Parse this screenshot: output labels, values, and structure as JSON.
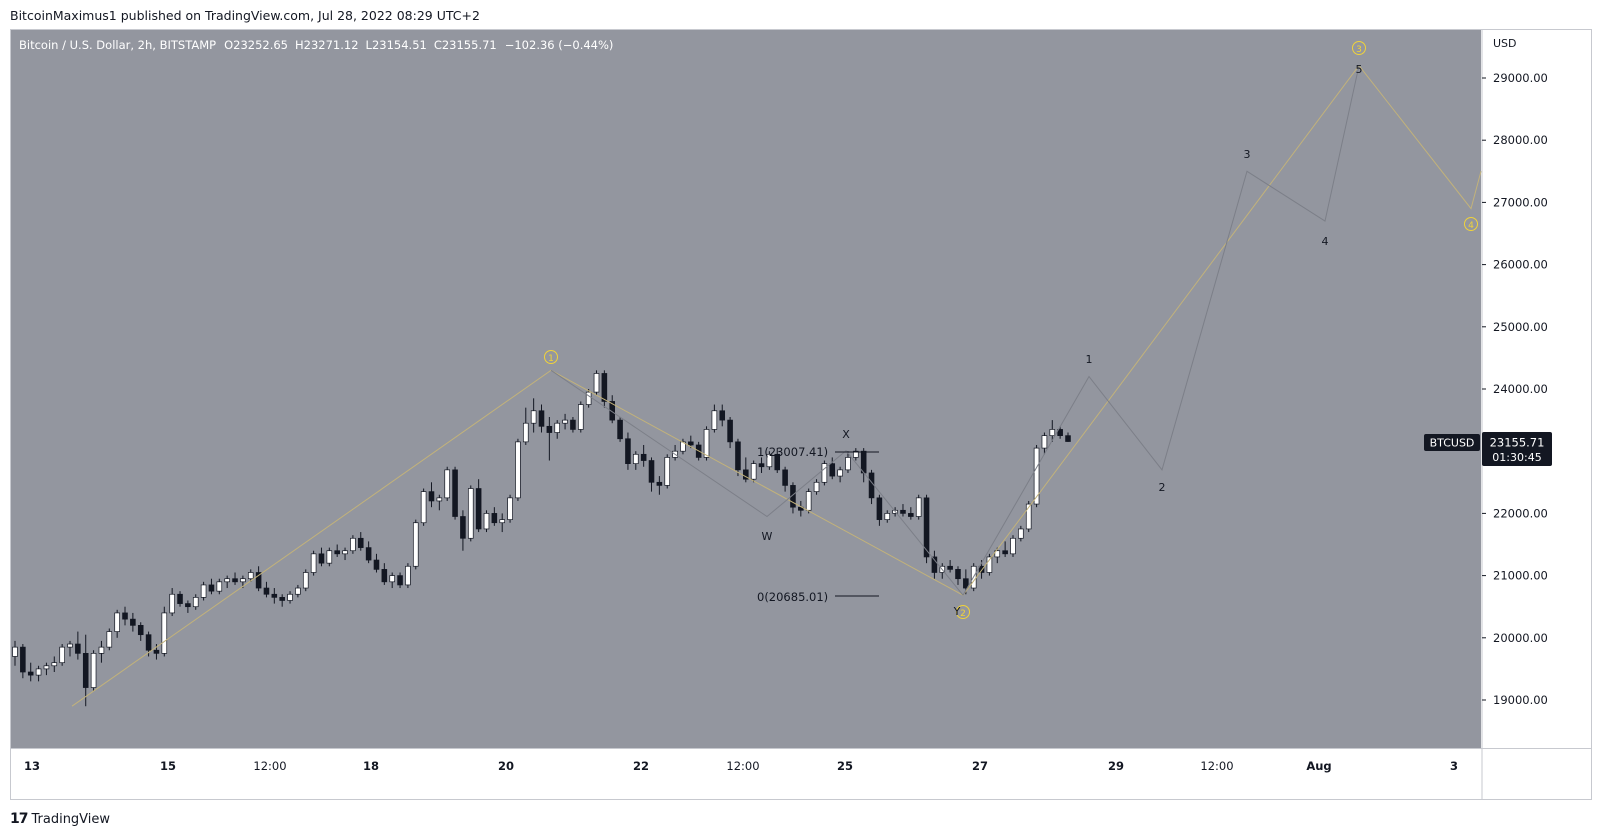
{
  "header": {
    "published_text": "BitcoinMaximus1 published on TradingView.com, Jul 28, 2022 08:29 UTC+2"
  },
  "legend": {
    "symbol": "Bitcoin / U.S. Dollar, 2h, BITSTAMP",
    "o_label": "O",
    "o_value": "23252.65",
    "h_label": "H",
    "h_value": "23271.12",
    "l_label": "L",
    "l_value": "23154.51",
    "c_label": "C",
    "c_value": "23155.71",
    "change": "−102.36 (−0.44%)"
  },
  "price_tag": {
    "symbol": "BTCUSD",
    "price": "23155.71",
    "countdown": "01:30:45"
  },
  "footer": {
    "brand": "TradingView"
  },
  "colors": {
    "panel_bg": "#93969f",
    "candle_up": "#ffffff",
    "candle_down": "#131722",
    "wave_line": "#c2b27a",
    "sub_wave_line": "#7c7f88",
    "circle_label": "#f0d33a",
    "price_tag_bg": "#131722"
  },
  "chart_data": {
    "type": "candlestick",
    "y_axis_unit": "USD",
    "y_ticks": [
      "29000.00",
      "28000.00",
      "27000.00",
      "26000.00",
      "25000.00",
      "24000.00",
      "23000.00",
      "22000.00",
      "21000.00",
      "20000.00",
      "19000.00"
    ],
    "ylim": [
      18300,
      29900
    ],
    "x_ticks": [
      "13",
      "15",
      "12:00",
      "18",
      "20",
      "22",
      "12:00",
      "25",
      "27",
      "29",
      "12:00",
      "Aug",
      "3"
    ],
    "x_tick_bold": [
      "13",
      "15",
      "18",
      "20",
      "22",
      "25",
      "27",
      "29",
      "Aug",
      "3"
    ],
    "candles_ohlc": [
      [
        19700,
        19950,
        19550,
        19850
      ],
      [
        19850,
        19900,
        19350,
        19450
      ],
      [
        19450,
        19600,
        19300,
        19400
      ],
      [
        19400,
        19550,
        19300,
        19500
      ],
      [
        19500,
        19600,
        19400,
        19550
      ],
      [
        19550,
        19700,
        19450,
        19600
      ],
      [
        19600,
        19900,
        19550,
        19850
      ],
      [
        19850,
        19950,
        19700,
        19900
      ],
      [
        19900,
        20100,
        19650,
        19750
      ],
      [
        19750,
        20050,
        18900,
        19200
      ],
      [
        19200,
        19800,
        19150,
        19750
      ],
      [
        19750,
        19950,
        19600,
        19850
      ],
      [
        19850,
        20150,
        19800,
        20100
      ],
      [
        20100,
        20450,
        20000,
        20400
      ],
      [
        20400,
        20500,
        20200,
        20300
      ],
      [
        20300,
        20400,
        20100,
        20200
      ],
      [
        20200,
        20250,
        19950,
        20050
      ],
      [
        20050,
        20100,
        19700,
        19800
      ],
      [
        19800,
        19900,
        19650,
        19750
      ],
      [
        19750,
        20500,
        19700,
        20400
      ],
      [
        20400,
        20800,
        20350,
        20700
      ],
      [
        20700,
        20750,
        20500,
        20550
      ],
      [
        20550,
        20600,
        20400,
        20500
      ],
      [
        20500,
        20700,
        20450,
        20650
      ],
      [
        20650,
        20900,
        20600,
        20850
      ],
      [
        20850,
        20950,
        20700,
        20750
      ],
      [
        20750,
        20950,
        20700,
        20900
      ],
      [
        20900,
        21000,
        20800,
        20950
      ],
      [
        20950,
        21050,
        20850,
        20900
      ],
      [
        20900,
        21000,
        20800,
        20950
      ],
      [
        20950,
        21100,
        20900,
        21050
      ],
      [
        21050,
        21150,
        20750,
        20800
      ],
      [
        20800,
        20900,
        20650,
        20700
      ],
      [
        20700,
        20800,
        20550,
        20650
      ],
      [
        20650,
        20700,
        20500,
        20600
      ],
      [
        20600,
        20750,
        20550,
        20700
      ],
      [
        20700,
        20850,
        20650,
        20800
      ],
      [
        20800,
        21100,
        20750,
        21050
      ],
      [
        21050,
        21400,
        21000,
        21350
      ],
      [
        21350,
        21450,
        21150,
        21200
      ],
      [
        21200,
        21450,
        21150,
        21400
      ],
      [
        21400,
        21500,
        21300,
        21350
      ],
      [
        21350,
        21450,
        21250,
        21400
      ],
      [
        21400,
        21650,
        21350,
        21600
      ],
      [
        21600,
        21700,
        21400,
        21450
      ],
      [
        21450,
        21550,
        21200,
        21250
      ],
      [
        21250,
        21350,
        21050,
        21100
      ],
      [
        21100,
        21200,
        20850,
        20900
      ],
      [
        20900,
        21050,
        20800,
        21000
      ],
      [
        21000,
        21050,
        20800,
        20850
      ],
      [
        20850,
        21200,
        20800,
        21150
      ],
      [
        21150,
        21900,
        21100,
        21850
      ],
      [
        21850,
        22400,
        21800,
        22350
      ],
      [
        22350,
        22500,
        22100,
        22200
      ],
      [
        22200,
        22300,
        22050,
        22250
      ],
      [
        22250,
        22750,
        22200,
        22700
      ],
      [
        22700,
        22750,
        21900,
        21950
      ],
      [
        21950,
        22050,
        21400,
        21600
      ],
      [
        21600,
        22450,
        21550,
        22400
      ],
      [
        22400,
        22550,
        21700,
        21750
      ],
      [
        21750,
        22050,
        21700,
        22000
      ],
      [
        22000,
        22100,
        21800,
        21850
      ],
      [
        21850,
        22000,
        21700,
        21900
      ],
      [
        21900,
        22300,
        21850,
        22250
      ],
      [
        22250,
        23200,
        22200,
        23150
      ],
      [
        23150,
        23700,
        23100,
        23450
      ],
      [
        23450,
        23850,
        23300,
        23650
      ],
      [
        23650,
        23750,
        23300,
        23400
      ],
      [
        23400,
        23550,
        22850,
        23300
      ],
      [
        23300,
        23500,
        23200,
        23450
      ],
      [
        23450,
        23600,
        23350,
        23500
      ],
      [
        23500,
        23550,
        23300,
        23350
      ],
      [
        23350,
        23800,
        23300,
        23750
      ],
      [
        23750,
        24000,
        23700,
        23950
      ],
      [
        23950,
        24300,
        23900,
        24250
      ],
      [
        24250,
        24300,
        23700,
        23800
      ],
      [
        23800,
        23900,
        23450,
        23500
      ],
      [
        23500,
        23550,
        23150,
        23200
      ],
      [
        23200,
        23300,
        22700,
        22800
      ],
      [
        22800,
        23000,
        22700,
        22950
      ],
      [
        22950,
        23100,
        22750,
        22850
      ],
      [
        22850,
        22900,
        22350,
        22500
      ],
      [
        22500,
        22600,
        22300,
        22450
      ],
      [
        22450,
        22950,
        22400,
        22900
      ],
      [
        22900,
        23100,
        22850,
        23000
      ],
      [
        23000,
        23200,
        22950,
        23150
      ],
      [
        23150,
        23250,
        23050,
        23100
      ],
      [
        23100,
        23150,
        22850,
        22900
      ],
      [
        22900,
        23400,
        22850,
        23350
      ],
      [
        23350,
        23750,
        23300,
        23650
      ],
      [
        23650,
        23750,
        23400,
        23500
      ],
      [
        23500,
        23550,
        23050,
        23150
      ],
      [
        23150,
        23200,
        22600,
        22700
      ],
      [
        22700,
        22900,
        22500,
        22550
      ],
      [
        22550,
        22850,
        22500,
        22800
      ],
      [
        22800,
        22900,
        22650,
        22750
      ],
      [
        22750,
        23000,
        22700,
        22950
      ],
      [
        22950,
        23050,
        22650,
        22700
      ],
      [
        22700,
        22750,
        22350,
        22450
      ],
      [
        22450,
        22500,
        22000,
        22100
      ],
      [
        22100,
        22200,
        21950,
        22050
      ],
      [
        22050,
        22400,
        22000,
        22350
      ],
      [
        22350,
        22550,
        22300,
        22500
      ],
      [
        22500,
        22850,
        22450,
        22800
      ],
      [
        22800,
        22900,
        22550,
        22600
      ],
      [
        22600,
        22750,
        22500,
        22700
      ],
      [
        22700,
        23000,
        22650,
        22900
      ],
      [
        22900,
        23050,
        22850,
        23000
      ],
      [
        23000,
        23050,
        22500,
        22650
      ],
      [
        22650,
        22700,
        22150,
        22250
      ],
      [
        22250,
        22300,
        21800,
        21900
      ],
      [
        21900,
        22050,
        21850,
        22000
      ],
      [
        22000,
        22100,
        21950,
        22050
      ],
      [
        22050,
        22150,
        21950,
        22000
      ],
      [
        22000,
        22100,
        21900,
        21950
      ],
      [
        21950,
        22300,
        21900,
        22250
      ],
      [
        22250,
        22300,
        21200,
        21300
      ],
      [
        21300,
        21400,
        20950,
        21050
      ],
      [
        21050,
        21200,
        20950,
        21150
      ],
      [
        21150,
        21250,
        21050,
        21100
      ],
      [
        21100,
        21150,
        20850,
        20950
      ],
      [
        20950,
        21100,
        20700,
        20800
      ],
      [
        20800,
        21200,
        20750,
        21150
      ],
      [
        21150,
        21250,
        20950,
        21050
      ],
      [
        21050,
        21350,
        21000,
        21300
      ],
      [
        21300,
        21450,
        21200,
        21400
      ],
      [
        21400,
        21550,
        21300,
        21350
      ],
      [
        21350,
        21650,
        21300,
        21600
      ],
      [
        21600,
        21800,
        21550,
        21750
      ],
      [
        21750,
        22200,
        21700,
        22150
      ],
      [
        22150,
        23100,
        22100,
        23050
      ],
      [
        23050,
        23300,
        22950,
        23250
      ],
      [
        23250,
        23500,
        23150,
        23350
      ],
      [
        23350,
        23400,
        23200,
        23250
      ],
      [
        23250,
        23300,
        23150,
        23155.71
      ]
    ],
    "wave_points": [
      {
        "date": "Jul 13",
        "price": 18900
      },
      {
        "date": "Jul 20",
        "price": 24300
      },
      {
        "date": "Jul 26",
        "price": 20685
      },
      {
        "date": "Aug 1",
        "price": 29200
      },
      {
        "date": "Aug 3",
        "price": 26900
      },
      {
        "date": "Aug 3",
        "price": 27500
      }
    ],
    "sub_wave_points": [
      {
        "date": "Jul 26",
        "price": 20685
      },
      {
        "date": "Jul 28",
        "price": 24200
      },
      {
        "date": "Jul 29",
        "price": 22700
      },
      {
        "date": "Jul 30",
        "price": 27500
      },
      {
        "date": "Jul 31",
        "price": 26700
      },
      {
        "date": "Aug 1",
        "price": 29200
      }
    ],
    "correction_points": [
      {
        "date": "Jul 20",
        "price": 24300
      },
      {
        "date": "Jul 23",
        "price": 21950
      },
      {
        "date": "Jul 25",
        "price": 23007.41
      },
      {
        "date": "Jul 26",
        "price": 20685
      }
    ],
    "circle_labels": [
      "1",
      "2",
      "3",
      "4"
    ],
    "sub_labels": [
      "1",
      "2",
      "3",
      "4",
      "5"
    ],
    "correction_labels": [
      "W",
      "X",
      "Y"
    ],
    "fib_levels": [
      {
        "label": "1(23007.41)",
        "price": 23007.41
      },
      {
        "label": "0(20685.01)",
        "price": 20685.01
      }
    ]
  }
}
